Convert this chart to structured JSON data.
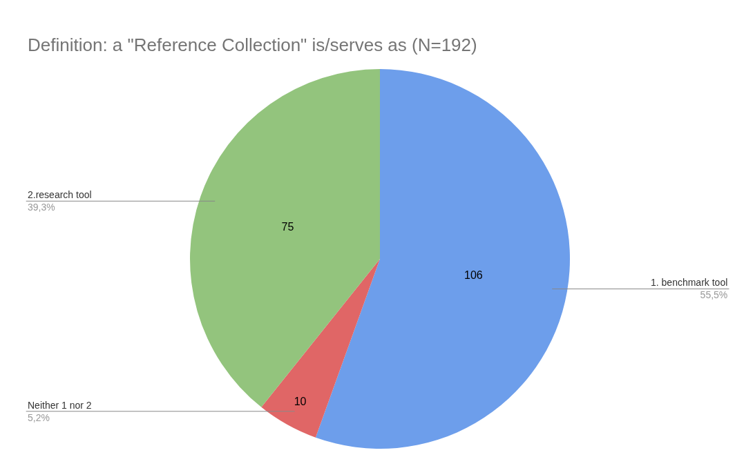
{
  "chart_data": {
    "type": "pie",
    "title": "Definition: a \"Reference Collection\" is/serves as (N=192)",
    "categories": [
      "1. benchmark tool",
      "Neither 1 nor 2",
      "2.research tool"
    ],
    "values": [
      106,
      10,
      75
    ],
    "colors": [
      "#6d9eeb",
      "#e06666",
      "#93c47d"
    ],
    "data_labels": true,
    "annotations": [
      "55,5%",
      "5,2%",
      "39,3%"
    ],
    "legend": false
  }
}
